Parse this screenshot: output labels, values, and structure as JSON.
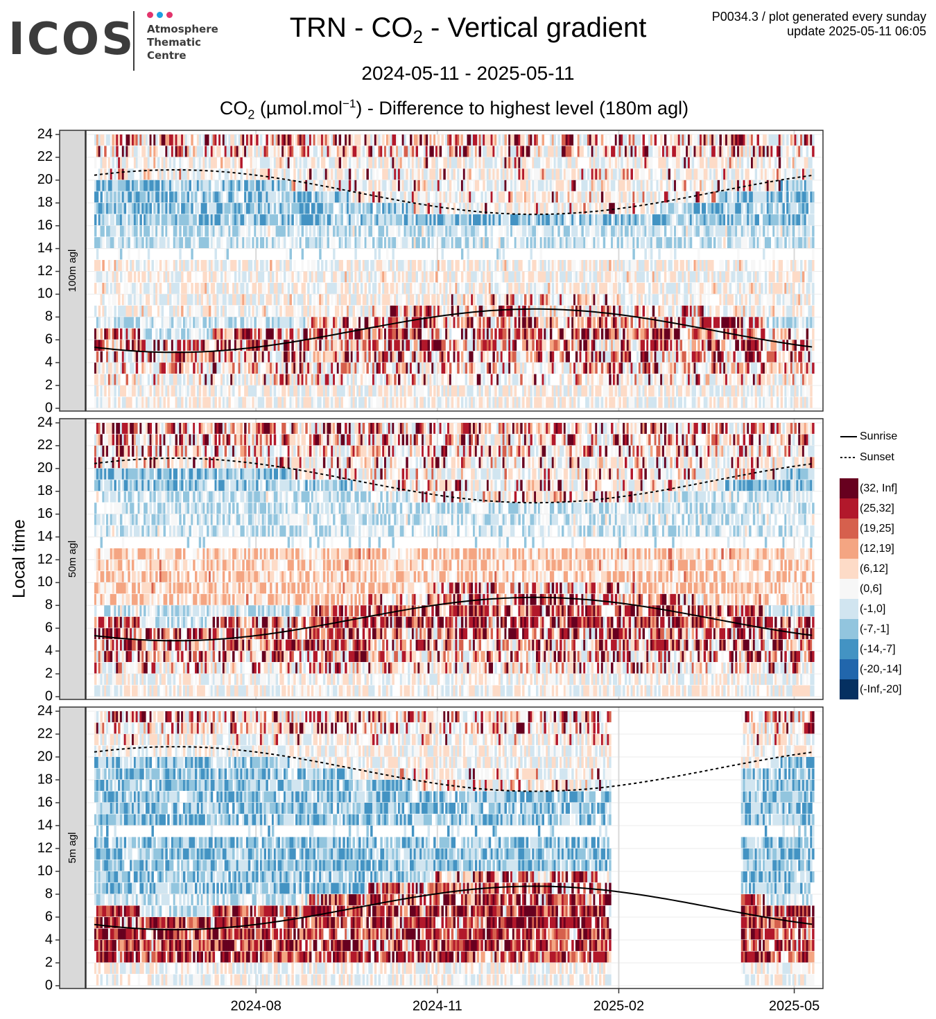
{
  "header": {
    "logo_text": "ICOS",
    "logo_subtitle": [
      "Atmosphere",
      "Thematic",
      "Centre"
    ],
    "logo_dot_colors": [
      "#e2346c",
      "#1ba0e2",
      "#e2346c"
    ],
    "title_main": "TRN - CO",
    "title_sub": "2",
    "title_tail": " - Vertical gradient",
    "date_range": "2024-05-11 - 2025-05-11",
    "subtitle_pre": "CO",
    "subtitle_sub": "2",
    "subtitle_unit": " (µmol.mol",
    "subtitle_sup": "−1",
    "subtitle_tail": ") - Difference to highest level (180m agl)",
    "meta_line1": "P0034.3 / plot generated every sunday",
    "meta_line2": "update  2025-05-11 06:05"
  },
  "chart_data": {
    "type": "heatmap",
    "ylabel": "Local time",
    "date_start": "2024-05-11",
    "date_end": "2025-05-11",
    "x_ticks": [
      "2024-08",
      "2024-11",
      "2025-02",
      "2025-05"
    ],
    "y_ticks": [
      0,
      2,
      4,
      6,
      8,
      10,
      12,
      14,
      16,
      18,
      20,
      22,
      24
    ],
    "ylim": [
      0,
      24
    ],
    "panels": [
      {
        "label": "100m agl",
        "night_bins": [
          0,
          0,
          2,
          4,
          5,
          6,
          7,
          6,
          4,
          3,
          4,
          4,
          4,
          4,
          4,
          3,
          2,
          1,
          1,
          1,
          1,
          1,
          3,
          4,
          4
        ],
        "day_bins": [
          5,
          5,
          6,
          7,
          7,
          6
        ]
      },
      {
        "label": "50m agl",
        "night_bins": [
          0,
          0,
          3,
          5,
          6,
          7,
          8,
          8,
          6,
          5,
          5,
          5,
          5,
          5,
          5,
          4,
          3,
          2,
          2,
          2,
          2,
          3,
          4,
          5,
          6
        ],
        "day_bins": [
          4,
          4,
          6,
          6,
          7,
          6
        ]
      },
      {
        "label": "5m agl",
        "night_bins": [
          0,
          0,
          9,
          9,
          9,
          9,
          9,
          8,
          7,
          5,
          4,
          3,
          3,
          3,
          3,
          2,
          2,
          2,
          1,
          0,
          0,
          1,
          3,
          5,
          7
        ],
        "day_bins": [
          7,
          7,
          7,
          7,
          7,
          7
        ]
      }
    ],
    "legend": [
      {
        "label": "Sunrise",
        "line": "solid"
      },
      {
        "label": "Sunset",
        "line": "dashed"
      },
      {
        "label": "(32, Inf]",
        "color": "#67001f"
      },
      {
        "label": "(25,32]",
        "color": "#b2182b"
      },
      {
        "label": "(19,25]",
        "color": "#d6604d"
      },
      {
        "label": "(12,19]",
        "color": "#f4a582"
      },
      {
        "label": "(6,12]",
        "color": "#fddbc7"
      },
      {
        "label": "(0,6]",
        "color": "#f7f7f7"
      },
      {
        "label": "(-1,0]",
        "color": "#d1e5f0"
      },
      {
        "label": "(-7,-1]",
        "color": "#92c5de"
      },
      {
        "label": "(-14,-7]",
        "color": "#4393c3"
      },
      {
        "label": "(-20,-14]",
        "color": "#2166ac"
      },
      {
        "label": "(-Inf,-20]",
        "color": "#053061"
      }
    ],
    "sunrise": {
      "min_hours": 4.9,
      "min_date": "2024-06-21",
      "max_hours": 8.7,
      "max_date": "2024-12-21"
    },
    "sunset": {
      "max_hours": 20.9,
      "max_date": "2024-06-21",
      "min_hours": 17.0,
      "min_date": "2024-12-21"
    },
    "data_gap": {
      "panel": "5m agl",
      "start": "2025-01-28",
      "end": "2025-04-04"
    }
  }
}
